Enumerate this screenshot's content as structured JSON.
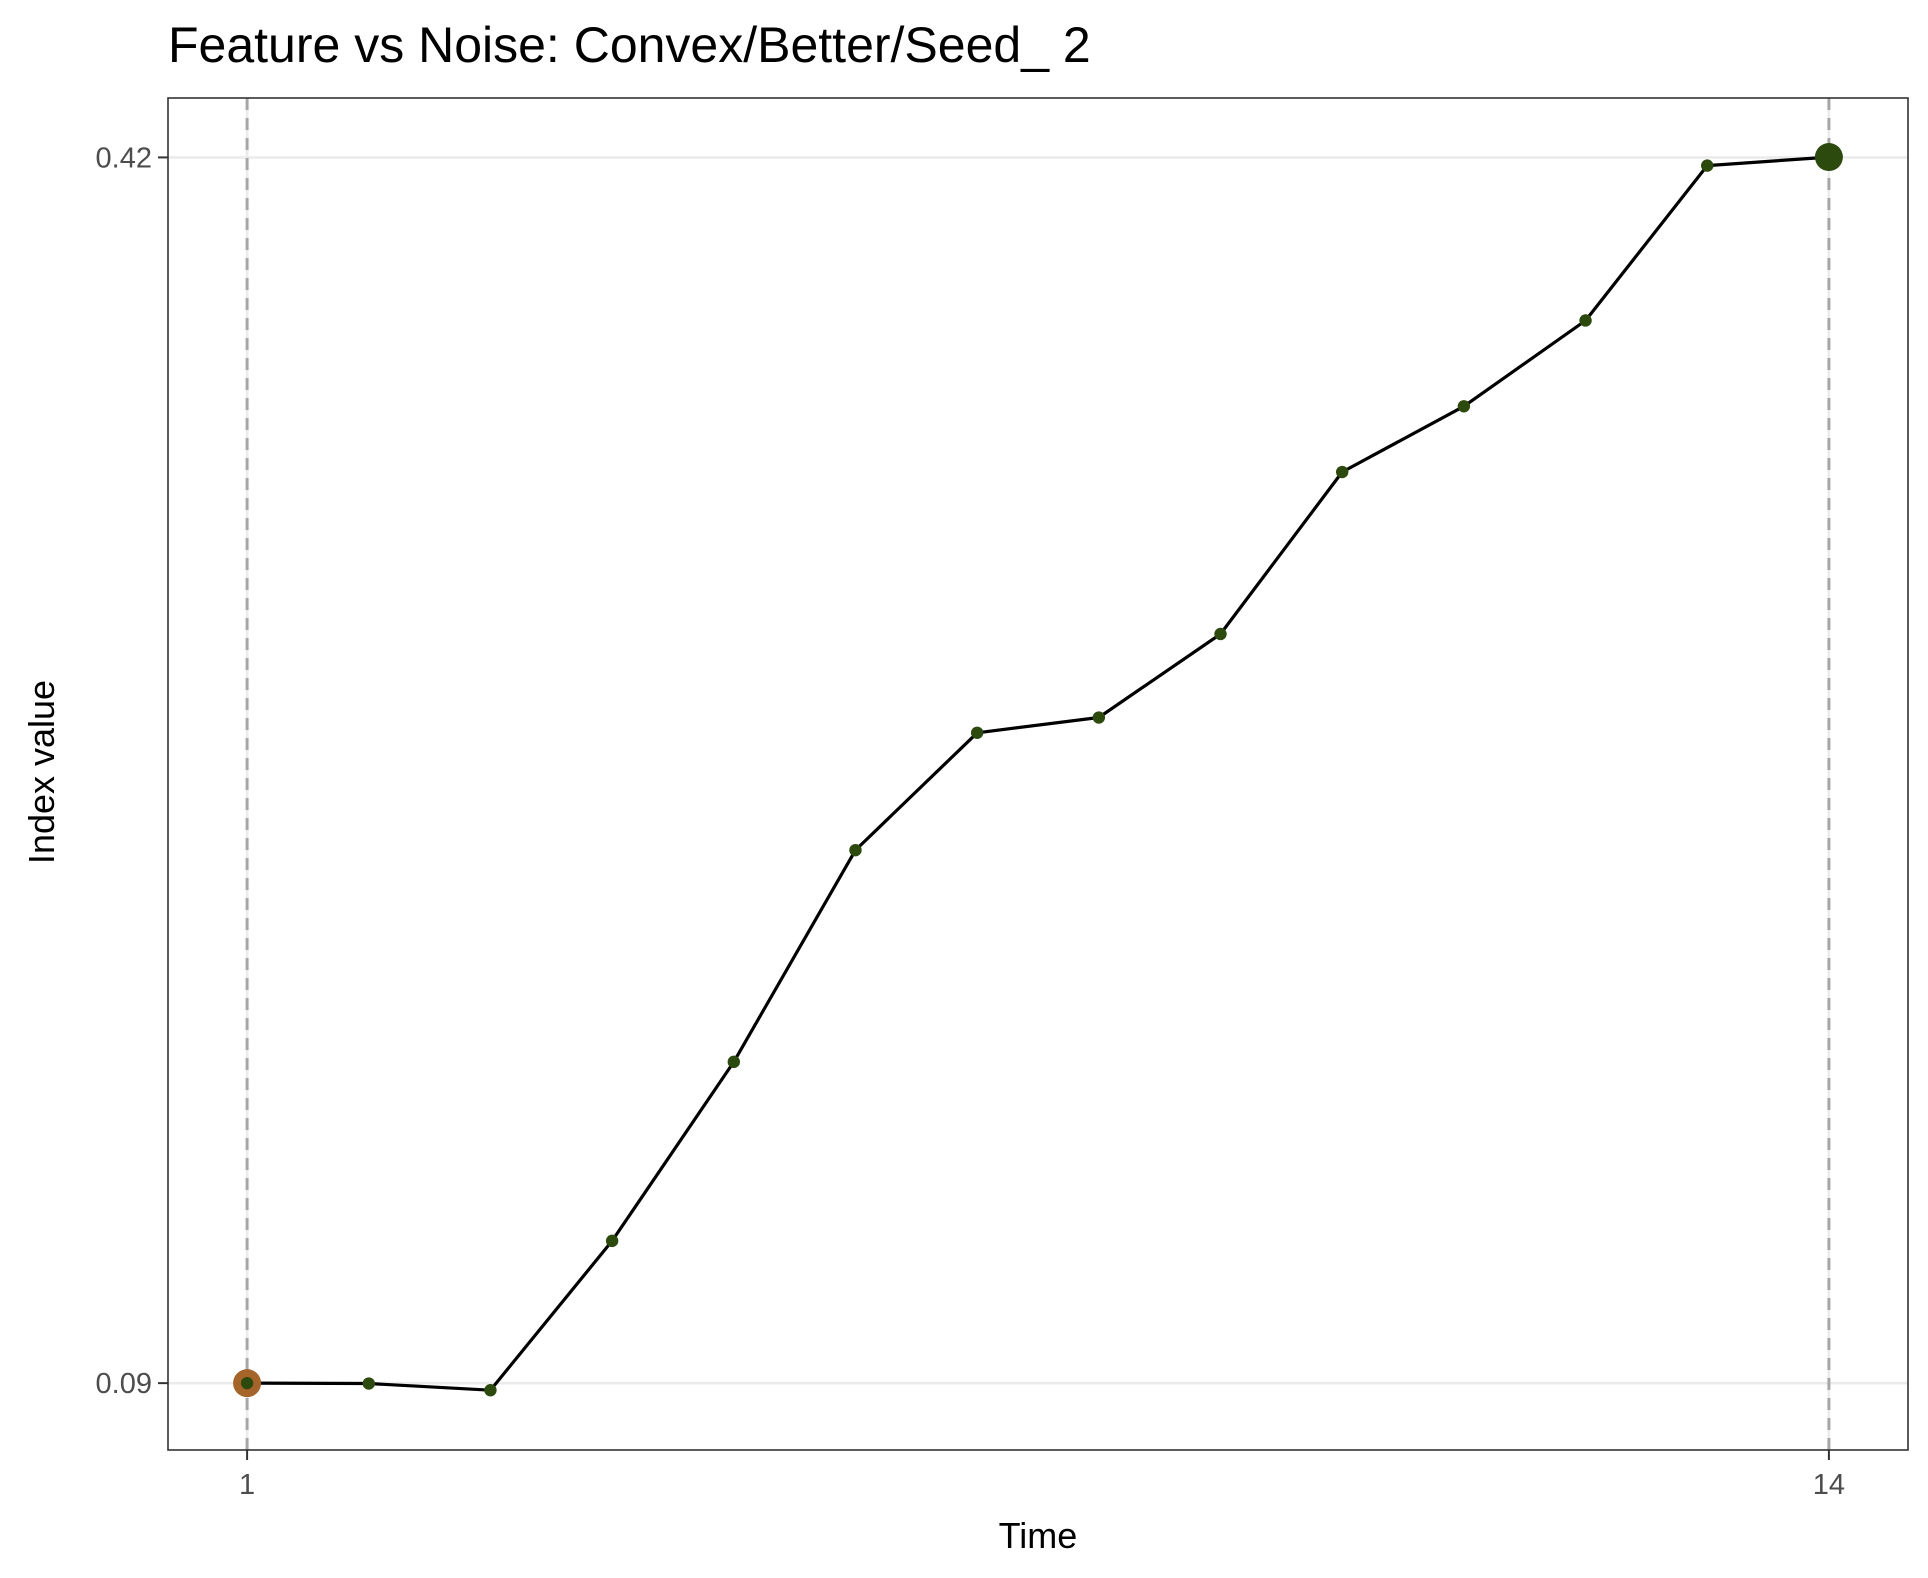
{
  "chart_data": {
    "type": "line",
    "title": "Feature vs Noise: Convex/Better/Seed_ 2",
    "xlabel": "Time",
    "ylabel": "Index value",
    "x_ticks": [
      1,
      14
    ],
    "y_ticks": [
      0.09,
      0.42
    ],
    "xlim": [
      0.35,
      14.65
    ],
    "ylim": [
      0.072,
      0.436
    ],
    "grid": true,
    "reference_lines_x": [
      1,
      14
    ],
    "series": [
      {
        "x": [
          1,
          2,
          3,
          4,
          5,
          6,
          7,
          8,
          9,
          10,
          11,
          12,
          13,
          14
        ],
        "values": [
          0.09,
          0.0899,
          0.0881,
          0.1283,
          0.1765,
          0.2335,
          0.2651,
          0.2692,
          0.2917,
          0.3353,
          0.353,
          0.3761,
          0.4178,
          0.4201
        ]
      }
    ],
    "highlight_points": [
      {
        "x": 1,
        "y": 0.09,
        "color": "#a4642a"
      },
      {
        "x": 14,
        "y": 0.4201,
        "color": "#2d4a0e"
      }
    ],
    "colors": {
      "line": "#000000",
      "point": "#2d4a0e",
      "start_highlight": "#a4642a",
      "end_highlight": "#2d4a0e",
      "grid": "#ebebeb",
      "reference_line": "#a6a6a6",
      "panel_border": "#333333"
    }
  }
}
